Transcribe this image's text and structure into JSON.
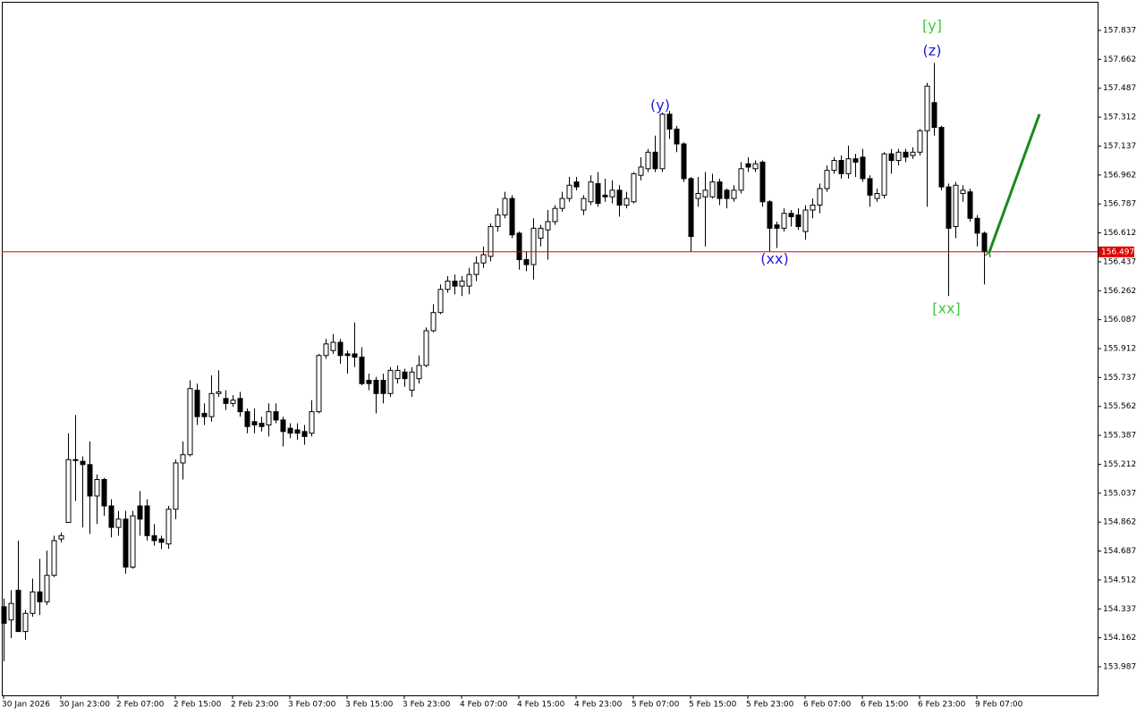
{
  "chart_data": {
    "type": "candlestick",
    "categories": [
      "30 Jan 2026",
      null,
      null,
      null,
      null,
      null,
      null,
      null,
      "30 Jan 23:00",
      null,
      null,
      null,
      null,
      null,
      null,
      null,
      "2 Feb 07:00",
      null,
      null,
      null,
      null,
      null,
      null,
      null,
      "2 Feb 15:00",
      null,
      null,
      null,
      null,
      null,
      null,
      null,
      "2 Feb 23:00",
      null,
      null,
      null,
      null,
      null,
      null,
      null,
      "3 Feb 07:00",
      null,
      null,
      null,
      null,
      null,
      null,
      null,
      "3 Feb 15:00",
      null,
      null,
      null,
      null,
      null,
      null,
      null,
      "3 Feb 23:00",
      null,
      null,
      null,
      null,
      null,
      null,
      null,
      "4 Feb 07:00",
      null,
      null,
      null,
      null,
      null,
      null,
      null,
      "4 Feb 15:00",
      null,
      null,
      null,
      null,
      null,
      null,
      null,
      "4 Feb 23:00",
      null,
      null,
      null,
      null,
      null,
      null,
      null,
      "5 Feb 07:00",
      null,
      null,
      null,
      null,
      null,
      null,
      null,
      "5 Feb 15:00",
      null,
      null,
      null,
      null,
      null,
      null,
      null,
      "5 Feb 23:00",
      null,
      null,
      null,
      null,
      null,
      null,
      null,
      "6 Feb 07:00",
      null,
      null,
      null,
      null,
      null,
      null,
      null,
      "6 Feb 15:00",
      null,
      null,
      null,
      null,
      null,
      null,
      null,
      "6 Feb 23:00",
      null,
      null,
      null,
      null,
      null,
      null,
      null,
      "9 Feb 07:00",
      null
    ],
    "open": [
      154.35,
      154.27,
      154.45,
      154.2,
      154.31,
      154.44,
      154.38,
      154.54,
      154.76,
      154.86,
      155.24,
      155.23,
      155.21,
      155.02,
      155.12,
      154.96,
      154.83,
      154.88,
      154.59,
      154.96,
      154.96,
      154.78,
      154.76,
      154.73,
      154.94,
      155.22,
      155.27,
      155.66,
      155.52,
      155.5,
      155.64,
      155.61,
      155.58,
      155.61,
      155.53,
      155.47,
      155.46,
      155.45,
      155.53,
      155.48,
      155.43,
      155.42,
      155.41,
      155.4,
      155.53,
      155.87,
      155.9,
      155.95,
      155.88,
      155.88,
      155.86,
      155.72,
      155.72,
      155.72,
      155.64,
      155.73,
      155.77,
      155.66,
      155.73,
      155.81,
      156.02,
      156.13,
      156.27,
      156.32,
      156.29,
      156.29,
      156.36,
      156.43,
      156.47,
      156.65,
      156.72,
      156.82,
      156.61,
      156.45,
      156.42,
      156.58,
      156.63,
      156.68,
      156.76,
      156.82,
      156.92,
      156.75,
      156.8,
      156.91,
      156.84,
      156.83,
      156.87,
      156.78,
      156.8,
      156.96,
      157.0,
      157.1,
      157.0,
      157.33,
      157.24,
      157.15,
      156.94,
      156.82,
      156.83,
      156.83,
      156.92,
      156.87,
      156.82,
      156.87,
      157.03,
      157.0,
      157.04,
      156.8,
      156.66,
      156.64,
      156.73,
      156.72,
      156.62,
      156.75,
      156.78,
      156.88,
      156.99,
      157.05,
      156.97,
      157.06,
      157.07,
      156.94,
      156.82,
      156.84,
      157.09,
      157.05,
      157.1,
      157.08,
      157.1,
      157.23,
      157.4,
      157.25,
      156.89,
      156.65,
      156.85,
      156.86,
      156.7,
      156.61
    ],
    "high": [
      154.4,
      154.45,
      154.75,
      154.33,
      154.52,
      154.64,
      154.69,
      154.78,
      154.8,
      155.4,
      155.51,
      155.26,
      155.35,
      155.15,
      155.13,
      155.0,
      154.93,
      154.93,
      154.93,
      155.05,
      155.0,
      154.85,
      154.78,
      154.96,
      155.24,
      155.35,
      155.72,
      155.7,
      155.58,
      155.75,
      155.78,
      155.66,
      155.63,
      155.65,
      155.55,
      155.55,
      155.5,
      155.58,
      155.58,
      155.5,
      155.46,
      155.46,
      155.45,
      155.6,
      155.88,
      155.97,
      156.0,
      155.97,
      155.9,
      156.07,
      155.92,
      155.76,
      155.74,
      155.76,
      155.8,
      155.81,
      155.79,
      155.8,
      155.87,
      156.04,
      156.18,
      156.3,
      156.35,
      156.36,
      156.35,
      156.4,
      156.47,
      156.53,
      156.67,
      156.76,
      156.86,
      156.84,
      156.62,
      156.5,
      156.7,
      156.66,
      156.75,
      156.78,
      156.86,
      156.95,
      156.95,
      156.84,
      156.96,
      156.98,
      156.94,
      156.93,
      156.9,
      156.86,
      156.98,
      157.07,
      157.12,
      157.2,
      157.34,
      157.35,
      157.26,
      157.16,
      156.95,
      156.95,
      156.98,
      156.97,
      156.94,
      156.88,
      156.9,
      157.04,
      157.07,
      157.05,
      157.05,
      156.81,
      156.68,
      156.76,
      156.75,
      156.76,
      156.78,
      156.82,
      156.91,
      157.02,
      157.07,
      157.08,
      157.14,
      157.09,
      157.12,
      156.96,
      156.88,
      157.1,
      157.12,
      157.12,
      157.12,
      157.13,
      157.24,
      157.52,
      157.64,
      157.26,
      156.91,
      156.92,
      156.9,
      156.88,
      156.72,
      156.62
    ],
    "low": [
      154.02,
      154.16,
      154.2,
      154.15,
      154.29,
      154.3,
      154.36,
      154.53,
      154.74,
      154.86,
      154.99,
      154.83,
      154.79,
      154.85,
      154.9,
      154.77,
      154.78,
      154.55,
      154.58,
      154.78,
      154.75,
      154.72,
      154.7,
      154.7,
      154.88,
      155.12,
      155.26,
      155.45,
      155.45,
      155.47,
      155.62,
      155.54,
      155.56,
      155.5,
      155.4,
      155.4,
      155.41,
      155.38,
      155.46,
      155.32,
      155.37,
      155.36,
      155.33,
      155.38,
      155.52,
      155.85,
      155.88,
      155.82,
      155.76,
      155.8,
      155.69,
      155.66,
      155.52,
      155.58,
      155.62,
      155.7,
      155.68,
      155.62,
      155.7,
      155.8,
      156.01,
      156.12,
      156.25,
      156.24,
      156.23,
      156.24,
      156.32,
      156.4,
      156.44,
      156.62,
      156.7,
      156.58,
      156.39,
      156.38,
      156.33,
      156.53,
      156.45,
      156.66,
      156.74,
      156.8,
      156.87,
      156.72,
      156.78,
      156.77,
      156.8,
      156.79,
      156.71,
      156.76,
      156.79,
      156.93,
      156.98,
      156.98,
      156.98,
      157.18,
      157.1,
      156.92,
      156.5,
      156.77,
      156.53,
      156.82,
      156.78,
      156.76,
      156.8,
      156.85,
      156.98,
      156.98,
      156.77,
      156.5,
      156.52,
      156.62,
      156.65,
      156.63,
      156.57,
      156.7,
      156.73,
      156.86,
      156.97,
      156.94,
      156.94,
      156.95,
      156.92,
      156.77,
      156.8,
      156.82,
      156.97,
      157.02,
      157.04,
      157.06,
      157.08,
      156.77,
      157.2,
      156.87,
      156.23,
      156.58,
      156.8,
      156.68,
      156.53,
      156.3
    ],
    "close": [
      154.25,
      154.37,
      154.2,
      154.31,
      154.44,
      154.38,
      154.54,
      154.75,
      154.78,
      155.24,
      155.24,
      155.21,
      155.02,
      155.12,
      154.96,
      154.83,
      154.88,
      154.59,
      154.9,
      154.88,
      154.78,
      154.75,
      154.74,
      154.94,
      155.22,
      155.27,
      155.67,
      155.5,
      155.5,
      155.64,
      155.65,
      155.58,
      155.6,
      155.53,
      155.44,
      155.45,
      155.44,
      155.53,
      155.48,
      155.41,
      155.4,
      155.4,
      155.38,
      155.53,
      155.87,
      155.94,
      155.95,
      155.87,
      155.87,
      155.86,
      155.7,
      155.7,
      155.64,
      155.64,
      155.78,
      155.78,
      155.73,
      155.77,
      155.81,
      156.02,
      156.13,
      156.27,
      156.32,
      156.29,
      156.32,
      156.36,
      156.43,
      156.48,
      156.65,
      156.72,
      156.82,
      156.6,
      156.45,
      156.42,
      156.64,
      156.64,
      156.68,
      156.76,
      156.82,
      156.9,
      156.89,
      156.82,
      156.92,
      156.79,
      156.83,
      156.87,
      156.78,
      156.82,
      156.97,
      157.01,
      157.1,
      157.0,
      157.33,
      157.24,
      157.15,
      156.94,
      156.59,
      156.85,
      156.87,
      156.92,
      156.82,
      156.82,
      156.87,
      157.0,
      157.01,
      157.03,
      156.8,
      156.64,
      156.64,
      156.73,
      156.71,
      156.65,
      156.75,
      156.78,
      156.88,
      156.99,
      157.05,
      156.97,
      157.06,
      157.04,
      156.94,
      156.84,
      156.85,
      157.09,
      157.05,
      157.1,
      157.07,
      157.1,
      157.23,
      157.5,
      157.25,
      156.89,
      156.64,
      156.9,
      156.87,
      156.7,
      156.61,
      156.497
    ],
    "up_color": "#ffffff",
    "down_color": "#000000",
    "wick_color": "#000000",
    "xlim": [
      -0.25,
      152.875
    ],
    "ylim": [
      153.814,
      158.01
    ],
    "yticks": [
      157.837,
      157.662,
      157.487,
      157.312,
      157.137,
      156.962,
      156.787,
      156.612,
      156.437,
      156.262,
      156.087,
      155.912,
      155.737,
      155.562,
      155.387,
      155.212,
      155.037,
      154.862,
      154.687,
      154.512,
      154.337,
      154.162,
      153.987
    ],
    "price_line": {
      "value": 156.497,
      "color": "#e00000"
    },
    "trend_arrow": {
      "x": [
        137.75,
        144.75
      ],
      "y": [
        156.497,
        157.33
      ],
      "color": "#1a8a1a"
    },
    "annotations": [
      {
        "text": "[y]",
        "x": 129.75,
        "y": 157.86,
        "color": "#3ccc3c"
      },
      {
        "text": "(z)",
        "x": 129.75,
        "y": 157.71,
        "color": "#1c1cdc"
      },
      {
        "text": "(y)",
        "x": 91.75,
        "y": 157.38,
        "color": "#1c1cdc"
      },
      {
        "text": "(xx)",
        "x": 107.75,
        "y": 156.45,
        "color": "#1c1cdc"
      },
      {
        "text": "[xx]",
        "x": 131.75,
        "y": 156.15,
        "color": "#3ccc3c"
      }
    ]
  }
}
